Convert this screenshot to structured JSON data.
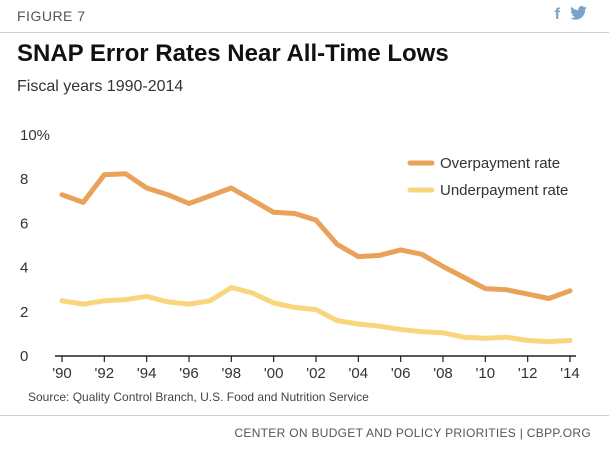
{
  "header": {
    "figure_label": "FIGURE 7",
    "social": [
      {
        "icon": "facebook-icon",
        "glyph": "f"
      },
      {
        "icon": "twitter-icon",
        "glyph": "🐦"
      }
    ]
  },
  "footer": {
    "source": "Source: Quality Control Branch, U.S. Food and Nutrition Service",
    "org": "CENTER ON BUDGET AND POLICY PRIORITIES | CBPP.ORG"
  },
  "chart_data": {
    "type": "line",
    "title": "SNAP Error Rates Near All-Time Lows",
    "subtitle": "Fiscal years 1990-2014",
    "x": [
      1990,
      1991,
      1992,
      1993,
      1994,
      1995,
      1996,
      1997,
      1998,
      1999,
      2000,
      2001,
      2002,
      2003,
      2004,
      2005,
      2006,
      2007,
      2008,
      2009,
      2010,
      2011,
      2012,
      2013,
      2014
    ],
    "series": [
      {
        "name": "Overpayment rate",
        "color": "#e8a25a",
        "values": [
          7.3,
          6.95,
          8.2,
          8.25,
          7.6,
          7.3,
          6.9,
          7.25,
          7.6,
          7.05,
          6.5,
          6.45,
          6.15,
          5.05,
          4.5,
          4.55,
          4.8,
          4.6,
          4.05,
          3.55,
          3.05,
          3.0,
          2.8,
          2.6,
          2.95
        ]
      },
      {
        "name": "Underpayment rate",
        "color": "#f7d67e",
        "values": [
          2.5,
          2.35,
          2.5,
          2.55,
          2.7,
          2.45,
          2.35,
          2.5,
          3.1,
          2.85,
          2.4,
          2.2,
          2.1,
          1.6,
          1.45,
          1.35,
          1.2,
          1.1,
          1.05,
          0.85,
          0.8,
          0.85,
          0.7,
          0.65,
          0.7
        ]
      }
    ],
    "ylim": [
      0,
      10
    ],
    "yticks": [
      0,
      2,
      4,
      6,
      8,
      10
    ],
    "ytick_labels": [
      "0",
      "2",
      "4",
      "6",
      "8",
      "10%"
    ],
    "xticks": [
      1990,
      1992,
      1994,
      1996,
      1998,
      2000,
      2002,
      2004,
      2006,
      2008,
      2010,
      2012,
      2014
    ],
    "xtick_labels": [
      "'90",
      "'92",
      "'94",
      "'96",
      "'98",
      "'00",
      "'02",
      "'04",
      "'06",
      "'08",
      "'10",
      "'12",
      "'14"
    ],
    "grid": false,
    "legend_position": "top-right",
    "axis_color": "#222222"
  }
}
